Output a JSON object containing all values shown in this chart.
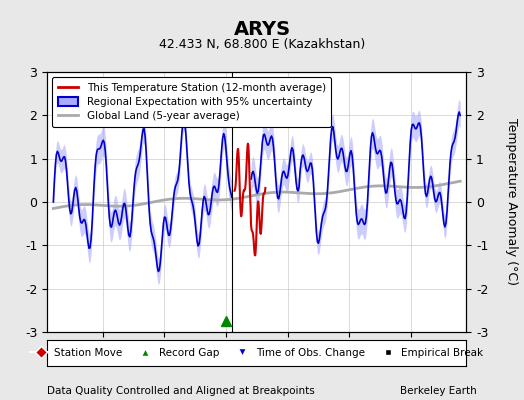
{
  "title": "ARYS",
  "subtitle": "42.433 N, 68.800 E (Kazakhstan)",
  "ylabel": "Temperature Anomaly (°C)",
  "xlabel_left": "Data Quality Controlled and Aligned at Breakpoints",
  "xlabel_right": "Berkeley Earth",
  "xlim": [
    1960.5,
    1994.5
  ],
  "ylim": [
    -3,
    3
  ],
  "yticks": [
    -3,
    -2,
    -1,
    0,
    1,
    2,
    3
  ],
  "xticks": [
    1965,
    1970,
    1975,
    1980,
    1985,
    1990
  ],
  "bg_color": "#e8e8e8",
  "plot_bg_color": "#ffffff",
  "grid_color": "#cccccc",
  "blue_line_color": "#0000cc",
  "red_line_color": "#cc0000",
  "gray_line_color": "#aaaaaa",
  "shade_color": "#aaaaff",
  "vertical_line_x": 1975.5,
  "record_gap_x": 1975.0,
  "legend_entries": [
    "This Temperature Station (12-month average)",
    "Regional Expectation with 95% uncertainty",
    "Global Land (5-year average)"
  ],
  "marker_legend": [
    {
      "label": "Station Move",
      "color": "#cc0000",
      "marker": "D"
    },
    {
      "label": "Record Gap",
      "color": "#008800",
      "marker": "^"
    },
    {
      "label": "Time of Obs. Change",
      "color": "#0000cc",
      "marker": "v"
    },
    {
      "label": "Empirical Break",
      "color": "#000000",
      "marker": "s"
    }
  ]
}
